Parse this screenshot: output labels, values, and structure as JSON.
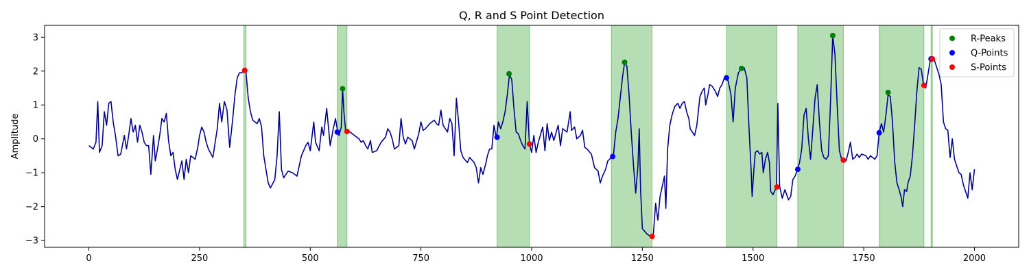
{
  "chart_data": {
    "type": "line",
    "title": "Q, R and S Point Detection",
    "xlabel": "",
    "ylabel": "Amplitude",
    "xlim": [
      -100,
      2100
    ],
    "ylim": [
      -3.2,
      3.35
    ],
    "x_ticks": [
      0,
      250,
      500,
      750,
      1000,
      1250,
      1500,
      1750,
      2000
    ],
    "y_ticks": [
      -3,
      -2,
      -1,
      0,
      1,
      2,
      3
    ],
    "grid": false,
    "legend_position": "top-right",
    "colors": {
      "signal": "#00008b",
      "r_peaks": "#008000",
      "q_points": "#0000ff",
      "s_points": "#ff0000",
      "qrs_region": "#2ca02c"
    },
    "signal": [
      [
        0,
        -0.2
      ],
      [
        10,
        -0.3
      ],
      [
        16,
        -0.1
      ],
      [
        20,
        1.1
      ],
      [
        24,
        -0.4
      ],
      [
        30,
        -0.2
      ],
      [
        35,
        0.8
      ],
      [
        40,
        0.4
      ],
      [
        45,
        1.05
      ],
      [
        50,
        1.1
      ],
      [
        55,
        0.5
      ],
      [
        60,
        0.1
      ],
      [
        66,
        -0.5
      ],
      [
        72,
        -0.45
      ],
      [
        80,
        0.1
      ],
      [
        85,
        -0.3
      ],
      [
        90,
        0.1
      ],
      [
        95,
        0.6
      ],
      [
        100,
        0.2
      ],
      [
        105,
        0.4
      ],
      [
        110,
        -0.1
      ],
      [
        115,
        0.4
      ],
      [
        120,
        0.2
      ],
      [
        125,
        -0.1
      ],
      [
        130,
        -0.2
      ],
      [
        135,
        -0.2
      ],
      [
        140,
        -1.05
      ],
      [
        146,
        0.1
      ],
      [
        150,
        -0.65
      ],
      [
        155,
        -0.3
      ],
      [
        160,
        0.1
      ],
      [
        165,
        0.6
      ],
      [
        170,
        0.5
      ],
      [
        175,
        0.75
      ],
      [
        180,
        -0.05
      ],
      [
        185,
        -0.5
      ],
      [
        190,
        -0.4
      ],
      [
        195,
        -0.9
      ],
      [
        200,
        -1.2
      ],
      [
        210,
        -0.65
      ],
      [
        215,
        -1.2
      ],
      [
        220,
        -0.6
      ],
      [
        225,
        -1.0
      ],
      [
        230,
        -0.5
      ],
      [
        240,
        -0.6
      ],
      [
        246,
        -0.25
      ],
      [
        250,
        0.1
      ],
      [
        255,
        0.35
      ],
      [
        260,
        0.2
      ],
      [
        265,
        -0.1
      ],
      [
        270,
        -0.3
      ],
      [
        280,
        -0.55
      ],
      [
        290,
        0.3
      ],
      [
        295,
        1.05
      ],
      [
        300,
        0.5
      ],
      [
        306,
        1.1
      ],
      [
        312,
        0.85
      ],
      [
        318,
        -0.25
      ],
      [
        325,
        0.6
      ],
      [
        330,
        1.3
      ],
      [
        335,
        1.8
      ],
      [
        340,
        1.95
      ],
      [
        345,
        1.95
      ],
      [
        350,
        2.0
      ],
      [
        355,
        1.95
      ],
      [
        360,
        1.2
      ],
      [
        365,
        0.8
      ],
      [
        370,
        0.55
      ],
      [
        375,
        0.5
      ],
      [
        380,
        0.45
      ],
      [
        385,
        0.6
      ],
      [
        390,
        0.35
      ],
      [
        395,
        -0.5
      ],
      [
        400,
        -0.9
      ],
      [
        405,
        -1.3
      ],
      [
        410,
        -1.45
      ],
      [
        420,
        -1.2
      ],
      [
        425,
        -0.5
      ],
      [
        430,
        0.8
      ],
      [
        435,
        -0.9
      ],
      [
        440,
        -1.15
      ],
      [
        450,
        -0.95
      ],
      [
        460,
        -1.0
      ],
      [
        470,
        -1.1
      ],
      [
        480,
        -0.5
      ],
      [
        490,
        -0.2
      ],
      [
        495,
        -0.1
      ],
      [
        500,
        -0.35
      ],
      [
        508,
        0.5
      ],
      [
        512,
        -0.1
      ],
      [
        520,
        -0.35
      ],
      [
        526,
        0.35
      ],
      [
        530,
        0.1
      ],
      [
        537,
        0.9
      ],
      [
        545,
        -0.2
      ],
      [
        552,
        0.3
      ],
      [
        557,
        0.6
      ],
      [
        562,
        0.2
      ],
      [
        565,
        0.1
      ],
      [
        570,
        0.35
      ],
      [
        573,
        1.48
      ],
      [
        576,
        0.8
      ],
      [
        580,
        0.22
      ],
      [
        585,
        0.25
      ],
      [
        590,
        0.2
      ],
      [
        600,
        0.1
      ],
      [
        610,
        0.0
      ],
      [
        615,
        -0.1
      ],
      [
        620,
        -0.05
      ],
      [
        625,
        -0.2
      ],
      [
        630,
        -0.3
      ],
      [
        636,
        -0.05
      ],
      [
        640,
        -0.4
      ],
      [
        650,
        -0.35
      ],
      [
        660,
        -0.1
      ],
      [
        670,
        0.05
      ],
      [
        675,
        0.3
      ],
      [
        680,
        0.2
      ],
      [
        685,
        0.0
      ],
      [
        690,
        -0.3
      ],
      [
        700,
        -0.2
      ],
      [
        705,
        0.6
      ],
      [
        710,
        0.05
      ],
      [
        715,
        -0.15
      ],
      [
        720,
        0.05
      ],
      [
        730,
        -0.05
      ],
      [
        735,
        -0.3
      ],
      [
        745,
        0.15
      ],
      [
        750,
        0.5
      ],
      [
        755,
        0.25
      ],
      [
        760,
        0.3
      ],
      [
        770,
        0.45
      ],
      [
        780,
        0.55
      ],
      [
        785,
        0.45
      ],
      [
        790,
        0.4
      ],
      [
        795,
        0.85
      ],
      [
        800,
        0.4
      ],
      [
        810,
        0.2
      ],
      [
        815,
        0.6
      ],
      [
        820,
        0.45
      ],
      [
        825,
        -0.5
      ],
      [
        830,
        1.2
      ],
      [
        835,
        0.5
      ],
      [
        840,
        -0.35
      ],
      [
        845,
        -0.55
      ],
      [
        855,
        -0.7
      ],
      [
        860,
        -0.55
      ],
      [
        870,
        -0.7
      ],
      [
        875,
        -0.85
      ],
      [
        880,
        -1.3
      ],
      [
        885,
        -0.85
      ],
      [
        890,
        -1.05
      ],
      [
        897,
        -0.7
      ],
      [
        900,
        -0.5
      ],
      [
        905,
        -0.3
      ],
      [
        910,
        -0.3
      ],
      [
        915,
        0.4
      ],
      [
        920,
        0.02
      ],
      [
        925,
        0.5
      ],
      [
        930,
        0.3
      ],
      [
        935,
        0.5
      ],
      [
        940,
        0.8
      ],
      [
        945,
        1.3
      ],
      [
        950,
        1.9
      ],
      [
        955,
        1.75
      ],
      [
        960,
        0.9
      ],
      [
        965,
        0.2
      ],
      [
        970,
        0.15
      ],
      [
        975,
        -0.05
      ],
      [
        980,
        -0.2
      ],
      [
        985,
        -0.3
      ],
      [
        990,
        1.1
      ],
      [
        995,
        -0.15
      ],
      [
        1000,
        -0.4
      ],
      [
        1005,
        0.1
      ],
      [
        1010,
        -0.4
      ],
      [
        1015,
        -0.1
      ],
      [
        1025,
        0.35
      ],
      [
        1030,
        -0.35
      ],
      [
        1035,
        0.45
      ],
      [
        1040,
        -0.05
      ],
      [
        1045,
        0.2
      ],
      [
        1050,
        -0.05
      ],
      [
        1060,
        0.4
      ],
      [
        1065,
        -0.2
      ],
      [
        1070,
        0.3
      ],
      [
        1080,
        0.2
      ],
      [
        1087,
        0.8
      ],
      [
        1090,
        0.25
      ],
      [
        1097,
        0.35
      ],
      [
        1102,
        0.0
      ],
      [
        1110,
        0.1
      ],
      [
        1115,
        0.25
      ],
      [
        1120,
        -0.25
      ],
      [
        1125,
        -0.3
      ],
      [
        1135,
        -0.45
      ],
      [
        1142,
        -0.85
      ],
      [
        1150,
        -0.95
      ],
      [
        1155,
        -1.3
      ],
      [
        1160,
        -1.1
      ],
      [
        1167,
        -0.9
      ],
      [
        1172,
        -0.65
      ],
      [
        1180,
        -0.55
      ],
      [
        1185,
        -0.45
      ],
      [
        1190,
        0.2
      ],
      [
        1195,
        0.6
      ],
      [
        1200,
        1.2
      ],
      [
        1205,
        1.8
      ],
      [
        1210,
        2.25
      ],
      [
        1215,
        2.15
      ],
      [
        1220,
        1.3
      ],
      [
        1225,
        0.2
      ],
      [
        1230,
        -0.8
      ],
      [
        1235,
        -1.6
      ],
      [
        1240,
        -0.8
      ],
      [
        1243,
        0.3
      ],
      [
        1246,
        -1.5
      ],
      [
        1250,
        -2.65
      ],
      [
        1260,
        -2.8
      ],
      [
        1270,
        -2.9
      ],
      [
        1275,
        -2.8
      ],
      [
        1280,
        -1.9
      ],
      [
        1285,
        -2.4
      ],
      [
        1290,
        -1.7
      ],
      [
        1295,
        -1.4
      ],
      [
        1300,
        -1.1
      ],
      [
        1303,
        -2.05
      ],
      [
        1307,
        -0.3
      ],
      [
        1312,
        0.4
      ],
      [
        1317,
        0.7
      ],
      [
        1323,
        0.95
      ],
      [
        1330,
        1.05
      ],
      [
        1335,
        0.9
      ],
      [
        1340,
        1.05
      ],
      [
        1345,
        1.1
      ],
      [
        1350,
        0.8
      ],
      [
        1355,
        0.6
      ],
      [
        1358,
        0.3
      ],
      [
        1363,
        0.2
      ],
      [
        1368,
        0.1
      ],
      [
        1373,
        0.4
      ],
      [
        1380,
        1.25
      ],
      [
        1385,
        1.4
      ],
      [
        1390,
        1.5
      ],
      [
        1393,
        1.0
      ],
      [
        1398,
        1.3
      ],
      [
        1402,
        1.6
      ],
      [
        1408,
        1.55
      ],
      [
        1415,
        1.4
      ],
      [
        1420,
        1.25
      ],
      [
        1425,
        1.5
      ],
      [
        1430,
        1.6
      ],
      [
        1435,
        1.8
      ],
      [
        1440,
        1.8
      ],
      [
        1444,
        1.7
      ],
      [
        1450,
        1.3
      ],
      [
        1455,
        0.5
      ],
      [
        1460,
        1.5
      ],
      [
        1467,
        1.95
      ],
      [
        1474,
        2.08
      ],
      [
        1480,
        2.1
      ],
      [
        1486,
        1.8
      ],
      [
        1491,
        0.3
      ],
      [
        1496,
        -1.0
      ],
      [
        1498,
        -1.7
      ],
      [
        1502,
        -0.9
      ],
      [
        1505,
        -0.4
      ],
      [
        1510,
        -0.35
      ],
      [
        1515,
        -0.45
      ],
      [
        1520,
        -0.4
      ],
      [
        1523,
        -1.0
      ],
      [
        1528,
        -0.6
      ],
      [
        1533,
        -0.4
      ],
      [
        1537,
        -0.7
      ],
      [
        1540,
        -1.55
      ],
      [
        1545,
        -1.65
      ],
      [
        1550,
        -1.5
      ],
      [
        1553,
        -1.45
      ],
      [
        1556,
        1.05
      ],
      [
        1560,
        -1.4
      ],
      [
        1566,
        -1.75
      ],
      [
        1572,
        -1.5
      ],
      [
        1580,
        -1.8
      ],
      [
        1585,
        -1.7
      ],
      [
        1590,
        -1.2
      ],
      [
        1595,
        -1.1
      ],
      [
        1600,
        -0.92
      ],
      [
        1605,
        -0.7
      ],
      [
        1610,
        -0.3
      ],
      [
        1615,
        0.7
      ],
      [
        1620,
        0.9
      ],
      [
        1625,
        0.0
      ],
      [
        1630,
        -0.6
      ],
      [
        1635,
        0.3
      ],
      [
        1640,
        1.2
      ],
      [
        1645,
        1.6
      ],
      [
        1650,
        0.5
      ],
      [
        1655,
        -0.35
      ],
      [
        1660,
        -0.55
      ],
      [
        1665,
        -0.6
      ],
      [
        1670,
        -0.5
      ],
      [
        1675,
        1.1
      ],
      [
        1680,
        3.05
      ],
      [
        1685,
        2.5
      ],
      [
        1690,
        1.0
      ],
      [
        1695,
        -0.35
      ],
      [
        1700,
        -0.6
      ],
      [
        1710,
        -0.65
      ],
      [
        1715,
        -0.4
      ],
      [
        1720,
        -0.1
      ],
      [
        1725,
        -0.6
      ],
      [
        1730,
        -0.55
      ],
      [
        1735,
        -0.45
      ],
      [
        1740,
        -0.55
      ],
      [
        1745,
        -0.45
      ],
      [
        1755,
        -0.5
      ],
      [
        1760,
        -0.6
      ],
      [
        1765,
        -0.5
      ],
      [
        1770,
        -0.55
      ],
      [
        1775,
        -0.6
      ],
      [
        1780,
        -0.5
      ],
      [
        1785,
        0.2
      ],
      [
        1790,
        0.45
      ],
      [
        1795,
        0.2
      ],
      [
        1800,
        0.7
      ],
      [
        1805,
        1.3
      ],
      [
        1810,
        1.25
      ],
      [
        1815,
        0.5
      ],
      [
        1820,
        -0.7
      ],
      [
        1825,
        -1.3
      ],
      [
        1830,
        -1.5
      ],
      [
        1835,
        -1.75
      ],
      [
        1838,
        -2.0
      ],
      [
        1842,
        -1.5
      ],
      [
        1847,
        -1.55
      ],
      [
        1850,
        -1.3
      ],
      [
        1855,
        -1.1
      ],
      [
        1860,
        -0.5
      ],
      [
        1865,
        0.4
      ],
      [
        1870,
        1.4
      ],
      [
        1875,
        2.1
      ],
      [
        1880,
        2.05
      ],
      [
        1885,
        1.6
      ],
      [
        1890,
        1.5
      ],
      [
        1895,
        1.9
      ],
      [
        1900,
        2.3
      ],
      [
        1905,
        2.35
      ],
      [
        1910,
        2.3
      ],
      [
        1915,
        2.1
      ],
      [
        1920,
        1.9
      ],
      [
        1925,
        1.6
      ],
      [
        1930,
        0.5
      ],
      [
        1935,
        0.3
      ],
      [
        1940,
        0.25
      ],
      [
        1945,
        -0.55
      ],
      [
        1950,
        0.0
      ],
      [
        1955,
        -0.6
      ],
      [
        1960,
        -0.8
      ],
      [
        1965,
        -1.0
      ],
      [
        1970,
        -1.05
      ],
      [
        1975,
        -1.35
      ],
      [
        1980,
        -1.55
      ],
      [
        1985,
        -1.75
      ],
      [
        1990,
        -1.0
      ],
      [
        1995,
        -1.5
      ],
      [
        2000,
        -0.9
      ]
    ],
    "qrs_regions": [
      [
        350,
        355
      ],
      [
        561,
        583
      ],
      [
        922,
        995
      ],
      [
        1180,
        1272
      ],
      [
        1440,
        1554
      ],
      [
        1601,
        1704
      ],
      [
        1785,
        1886
      ],
      [
        1902,
        1905
      ]
    ],
    "series": [
      {
        "name": "R-Peaks",
        "points": [
          [
            352,
            2.02
          ],
          [
            573,
            1.48
          ],
          [
            949,
            1.92
          ],
          [
            1210,
            2.26
          ],
          [
            1474,
            2.08
          ],
          [
            1680,
            3.05
          ],
          [
            1805,
            1.37
          ],
          [
            1905,
            2.36
          ]
        ]
      },
      {
        "name": "Q-Points",
        "points": [
          [
            561,
            0.2
          ],
          [
            922,
            0.05
          ],
          [
            1183,
            -0.52
          ],
          [
            1440,
            1.8
          ],
          [
            1601,
            -0.9
          ],
          [
            1785,
            0.18
          ],
          [
            1902,
            2.36
          ]
        ]
      },
      {
        "name": "S-Points",
        "points": [
          [
            352,
            2.02
          ],
          [
            583,
            0.22
          ],
          [
            995,
            -0.15
          ],
          [
            1272,
            -2.88
          ],
          [
            1554,
            -1.42
          ],
          [
            1704,
            -0.63
          ],
          [
            1886,
            1.58
          ],
          [
            1905,
            2.36
          ]
        ]
      }
    ]
  }
}
